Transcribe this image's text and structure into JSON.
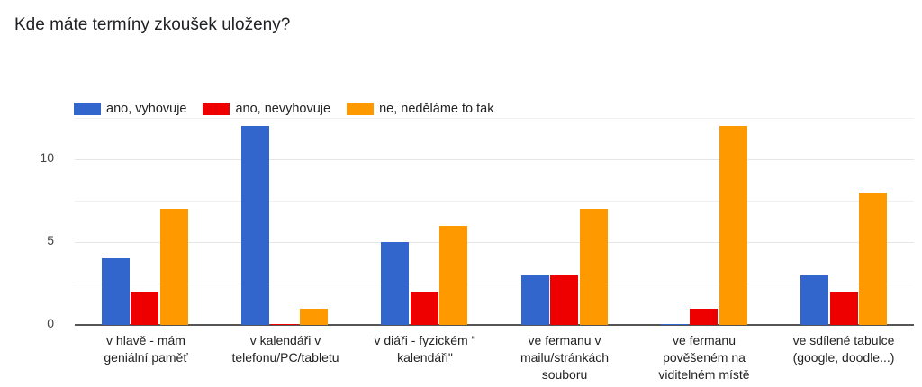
{
  "title": "Kde máte termíny zkoušek uloženy?",
  "legend": [
    {
      "label": "ano, vyhovuje",
      "color": "#3366cc"
    },
    {
      "label": "ano, nevyhovuje",
      "color": "#ee0000"
    },
    {
      "label": "ne, neděláme to tak",
      "color": "#ff9900"
    }
  ],
  "y_ticks": [
    "0",
    "5",
    "10"
  ],
  "x_labels": [
    "v hlavě - mám\ngeniální paměť",
    "v kalendáři v\ntelefonu/PC/tabletu",
    "v diáři - fyzickém \"\nkalendáři\"",
    "ve fermanu v\nmailu/stránkách\nsouboru",
    "ve fermanu\npověšeném na\nviditelném místě",
    "ve sdílené tabulce\n(google, doodle...)"
  ],
  "chart_data": {
    "type": "bar",
    "title": "Kde máte termíny zkoušek uloženy?",
    "categories": [
      "v hlavě - mám geniální paměť",
      "v kalendáři v telefonu/PC/tabletu",
      "v diáři - fyzickém \" kalendáři\"",
      "ve fermanu v mailu/stránkách souboru",
      "ve fermanu pověšeném na viditelném místě",
      "ve sdílené tabulce (google, doodle...)"
    ],
    "series": [
      {
        "name": "ano, vyhovuje",
        "color": "#3366cc",
        "values": [
          4,
          12,
          5,
          3,
          0,
          3
        ]
      },
      {
        "name": "ano, nevyhovuje",
        "color": "#ee0000",
        "values": [
          2,
          0,
          2,
          3,
          1,
          2
        ]
      },
      {
        "name": "ne, neděláme to tak",
        "color": "#ff9900",
        "values": [
          7,
          1,
          6,
          7,
          12,
          8
        ]
      }
    ],
    "xlabel": "",
    "ylabel": "",
    "ylim": [
      0,
      12.5
    ],
    "y_ticks": [
      0,
      5,
      10
    ],
    "grid": true,
    "legend_position": "top"
  }
}
